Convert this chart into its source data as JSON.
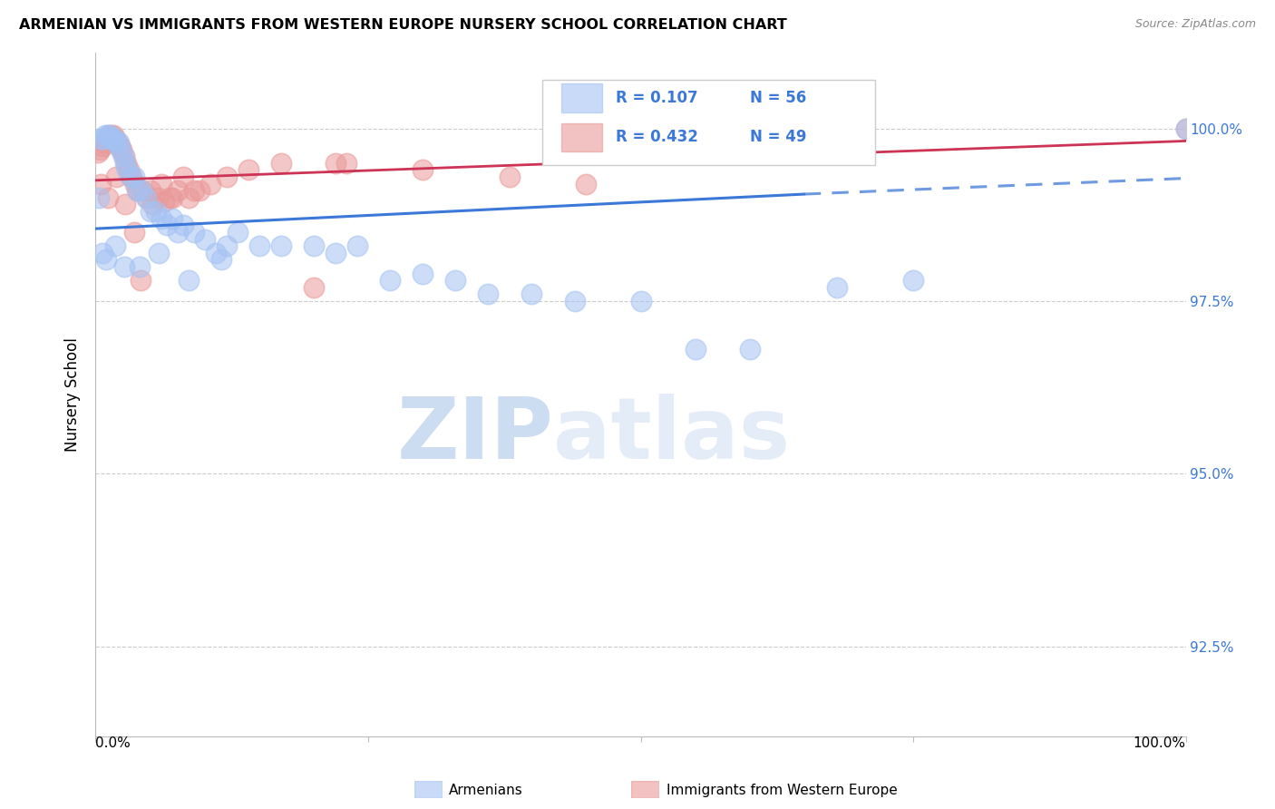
{
  "title": "ARMENIAN VS IMMIGRANTS FROM WESTERN EUROPE NURSERY SCHOOL CORRELATION CHART",
  "source": "Source: ZipAtlas.com",
  "ylabel": "Nursery School",
  "watermark_zip": "ZIP",
  "watermark_atlas": "atlas",
  "blue_label": "Armenians",
  "pink_label": "Immigrants from Western Europe",
  "blue_R": 0.107,
  "blue_N": 56,
  "pink_R": 0.432,
  "pink_N": 49,
  "yaxis_ticks": [
    92.5,
    95.0,
    97.5,
    100.0
  ],
  "yaxis_labels": [
    "92.5%",
    "95.0%",
    "97.5%",
    "100.0%"
  ],
  "xlim": [
    0,
    100
  ],
  "ylim": [
    91.2,
    101.1
  ],
  "blue_color": "#a4c2f4",
  "pink_color": "#ea9999",
  "blue_fill": "#a4c2f4",
  "pink_fill": "#ea9999",
  "blue_line": "#3c78d8",
  "pink_line": "#cc3355",
  "blue_x": [
    0.3,
    0.5,
    0.7,
    0.9,
    1.1,
    1.3,
    1.5,
    1.7,
    1.9,
    2.1,
    2.3,
    2.5,
    2.7,
    2.9,
    3.2,
    3.5,
    3.8,
    4.2,
    4.6,
    5.0,
    5.5,
    6.0,
    6.5,
    7.0,
    7.5,
    8.0,
    9.0,
    10.0,
    11.0,
    12.0,
    13.0,
    15.0,
    17.0,
    20.0,
    22.0,
    24.0,
    27.0,
    30.0,
    33.0,
    36.0,
    40.0,
    44.0,
    50.0,
    55.0,
    60.0,
    68.0,
    75.0,
    100.0,
    0.6,
    1.0,
    1.8,
    2.6,
    4.0,
    5.8,
    8.5,
    11.5
  ],
  "blue_y": [
    99.0,
    99.85,
    99.85,
    99.9,
    99.9,
    99.9,
    99.85,
    99.85,
    99.8,
    99.8,
    99.7,
    99.6,
    99.5,
    99.4,
    99.3,
    99.3,
    99.1,
    99.1,
    99.0,
    98.8,
    98.8,
    98.7,
    98.6,
    98.7,
    98.5,
    98.6,
    98.5,
    98.4,
    98.2,
    98.3,
    98.5,
    98.3,
    98.3,
    98.3,
    98.2,
    98.3,
    97.8,
    97.9,
    97.8,
    97.6,
    97.6,
    97.5,
    97.5,
    96.8,
    96.8,
    97.7,
    97.8,
    100.0,
    98.2,
    98.1,
    98.3,
    98.0,
    98.0,
    98.2,
    97.8,
    98.1
  ],
  "pink_x": [
    0.2,
    0.4,
    0.6,
    0.8,
    1.0,
    1.2,
    1.4,
    1.6,
    1.8,
    2.0,
    2.2,
    2.4,
    2.6,
    2.8,
    3.0,
    3.3,
    3.6,
    3.9,
    4.3,
    4.7,
    5.2,
    5.7,
    6.3,
    6.8,
    7.5,
    8.5,
    9.5,
    10.5,
    12.0,
    14.0,
    17.0,
    20.0,
    23.0,
    30.0,
    38.0,
    45.0,
    100.0,
    0.5,
    1.1,
    1.9,
    2.7,
    3.5,
    4.1,
    5.0,
    6.0,
    7.0,
    8.0,
    9.0,
    22.0
  ],
  "pink_y": [
    99.65,
    99.7,
    99.75,
    99.8,
    99.85,
    99.85,
    99.9,
    99.9,
    99.85,
    99.8,
    99.75,
    99.7,
    99.6,
    99.5,
    99.4,
    99.3,
    99.2,
    99.1,
    99.1,
    99.0,
    98.9,
    99.0,
    98.95,
    99.0,
    99.1,
    99.0,
    99.1,
    99.2,
    99.3,
    99.4,
    99.5,
    97.7,
    99.5,
    99.4,
    99.3,
    99.2,
    100.0,
    99.2,
    99.0,
    99.3,
    98.9,
    98.5,
    97.8,
    99.1,
    99.2,
    99.0,
    99.3,
    99.1,
    99.5
  ],
  "blue_trend_start_x": 0,
  "blue_trend_start_y": 98.55,
  "blue_trend_solid_end_x": 65,
  "blue_trend_solid_end_y": 99.05,
  "blue_trend_dashed_end_x": 100,
  "blue_trend_dashed_end_y": 99.28,
  "pink_trend_start_x": 0,
  "pink_trend_start_y": 99.25,
  "pink_trend_end_x": 100,
  "pink_trend_end_y": 99.82
}
